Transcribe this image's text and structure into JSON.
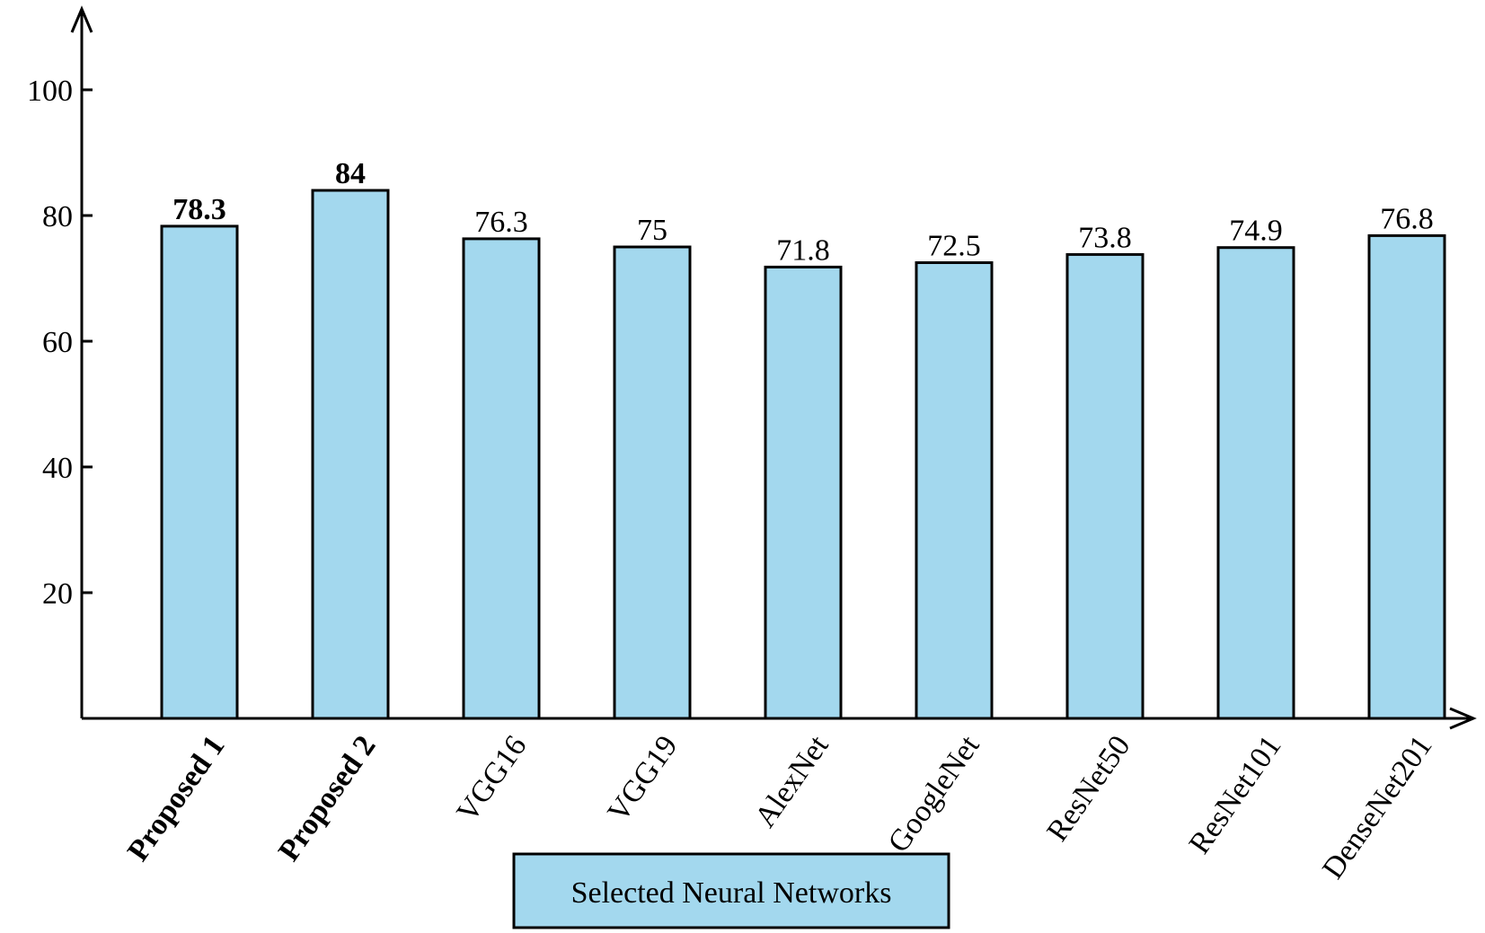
{
  "colors": {
    "bar_fill": "#A3D8EE",
    "bar_stroke": "#000000",
    "axis": "#000000",
    "background": "#FFFFFF"
  },
  "chart_data": {
    "type": "bar",
    "title": "",
    "xlabel": "",
    "ylabel": "",
    "ylim": [
      0,
      110
    ],
    "yticks": [
      20,
      40,
      60,
      80,
      100
    ],
    "ytick_labels": [
      "20",
      "40",
      "60",
      "80",
      "100"
    ],
    "grid": false,
    "legend_position": "bottom-center",
    "categories": [
      "Proposed 1",
      "Proposed 2",
      "VGG16",
      "VGG19",
      "AlexNet",
      "GoogleNet",
      "ResNet50",
      "ResNet101",
      "DenseNet201"
    ],
    "bold_categories": [
      "Proposed 1",
      "Proposed 2"
    ],
    "series": [
      {
        "name": "Selected Neural Networks",
        "values": [
          78.3,
          84,
          76.3,
          75,
          71.8,
          72.5,
          73.8,
          74.9,
          76.8
        ],
        "value_labels": [
          "78.3",
          "84",
          "76.3",
          "75",
          "71.8",
          "72.5",
          "73.8",
          "74.9",
          "76.8"
        ]
      }
    ]
  }
}
